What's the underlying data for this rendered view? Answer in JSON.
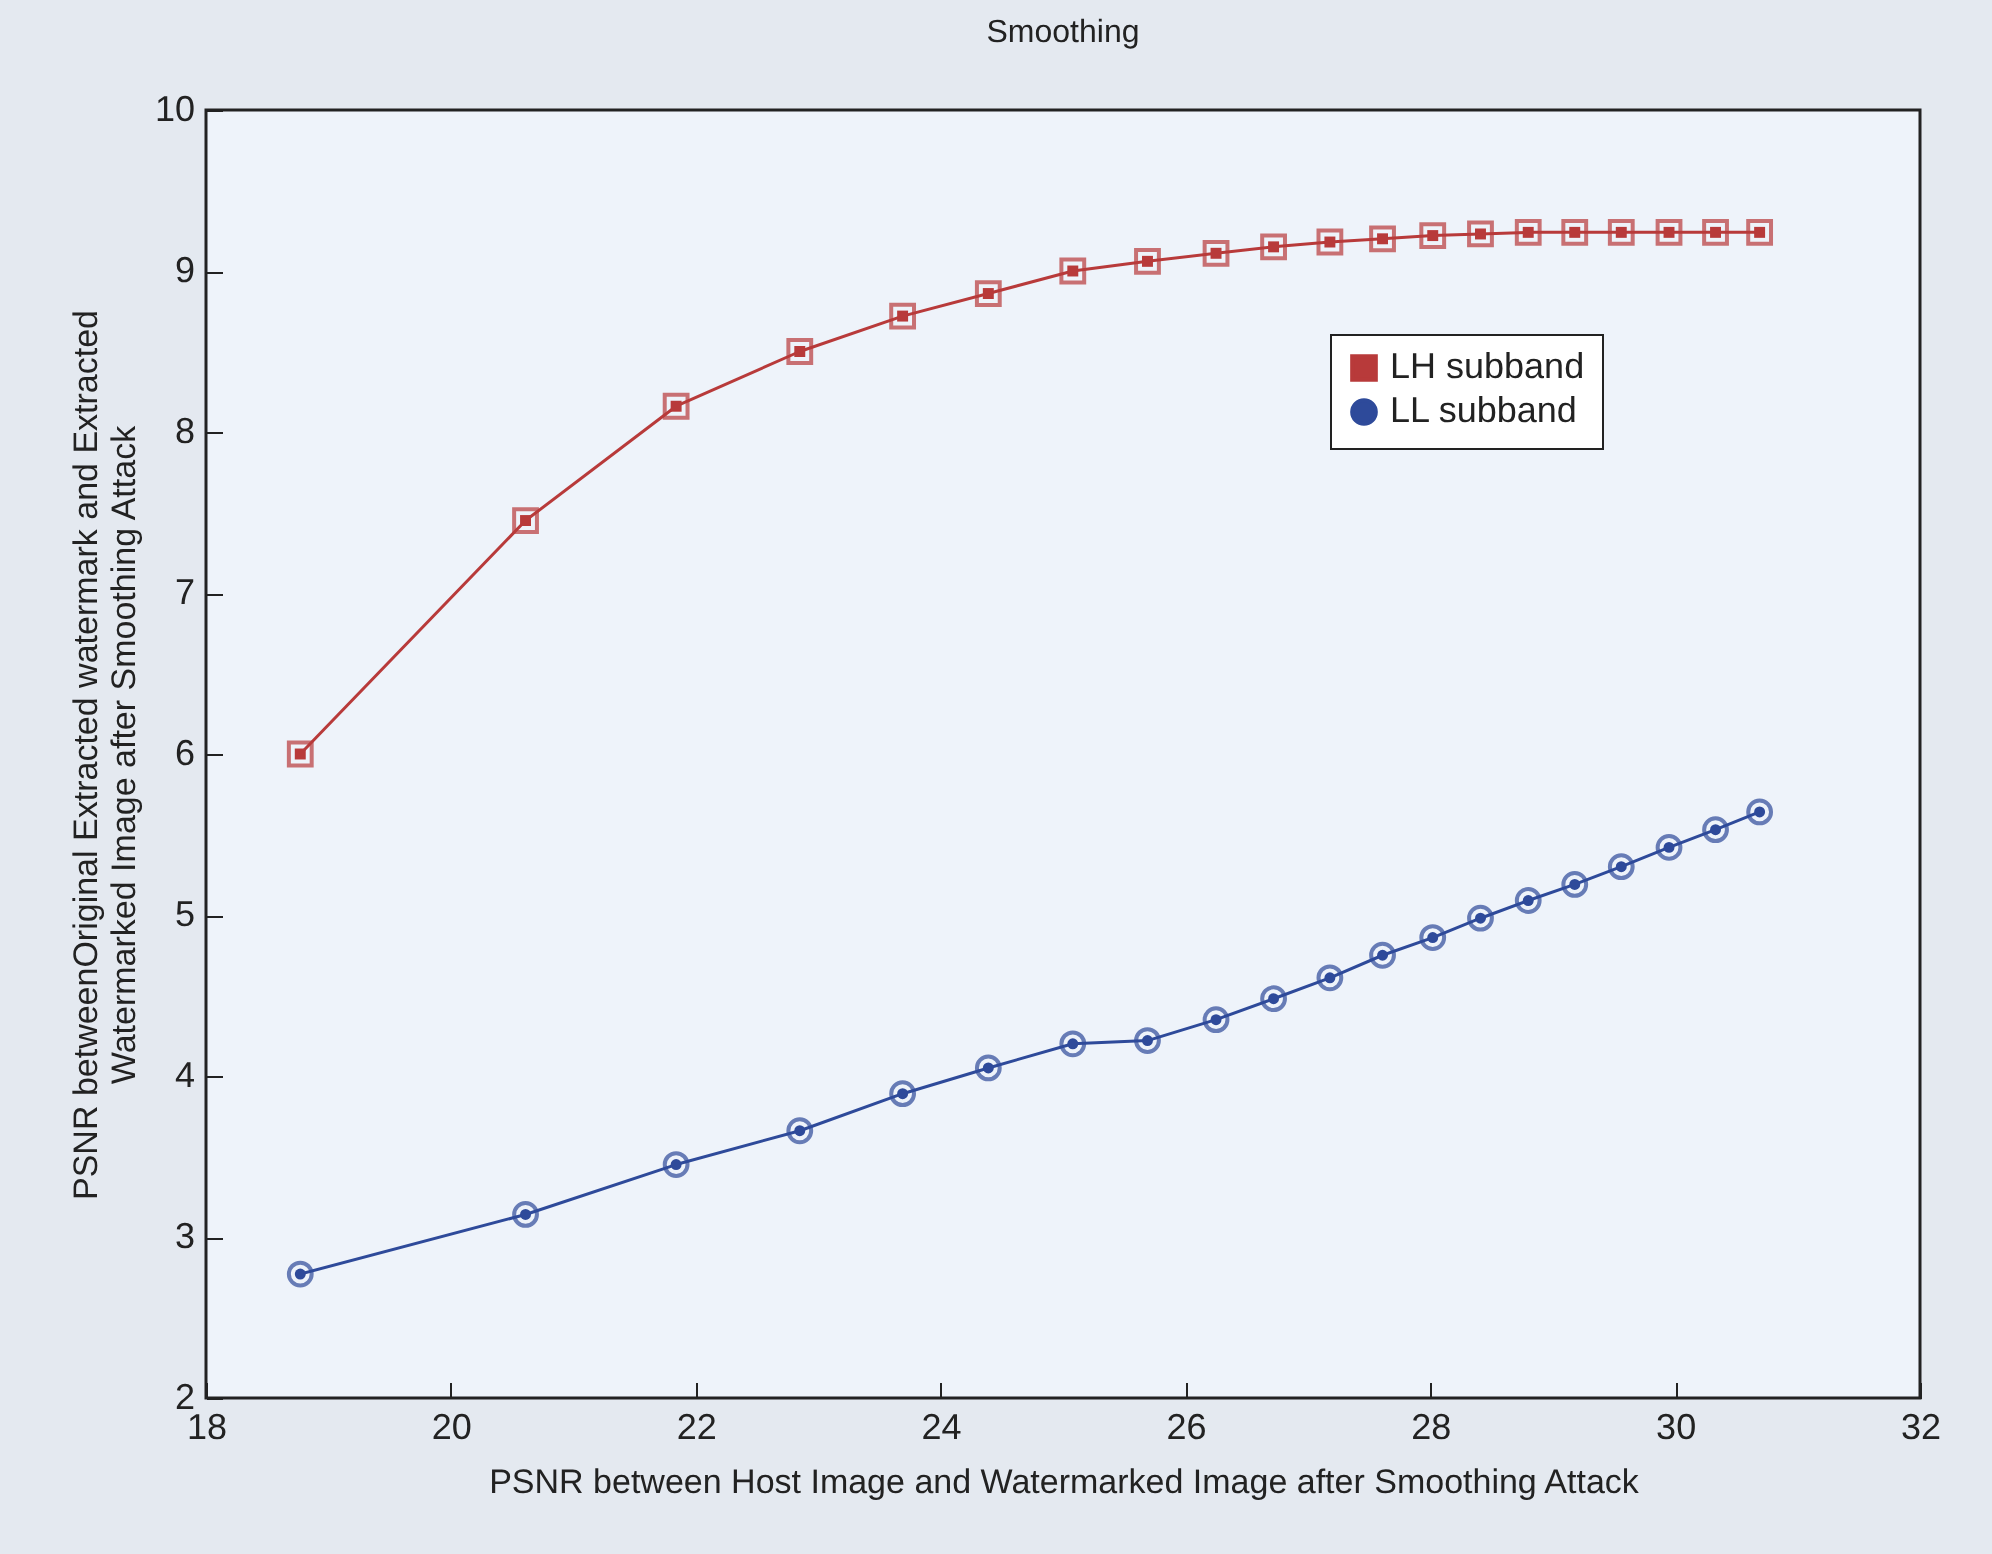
{
  "chart_data": {
    "type": "line",
    "title": "Smoothing",
    "xlabel": "PSNR between Host Image and Watermarked Image after Smoothing Attack",
    "ylabel": "PSNR betweenOriginal Extracted watermark and Extracted\nWatermarked Image after Smoothing Attack",
    "x": [
      18.77,
      20.61,
      21.84,
      22.85,
      23.69,
      24.39,
      25.08,
      25.69,
      26.25,
      26.72,
      27.18,
      27.61,
      28.02,
      28.41,
      28.8,
      29.18,
      29.56,
      29.95,
      30.33,
      30.69
    ],
    "series": [
      {
        "name": "LH subband",
        "color": "#b83a3a",
        "marker": "square",
        "values": [
          6.0,
          7.45,
          8.16,
          8.5,
          8.72,
          8.86,
          9.0,
          9.06,
          9.11,
          9.15,
          9.18,
          9.2,
          9.22,
          9.23,
          9.24,
          9.24,
          9.24,
          9.24,
          9.24,
          9.24
        ]
      },
      {
        "name": "LL subband",
        "color": "#2e4a9a",
        "marker": "circle",
        "values": [
          2.77,
          3.14,
          3.45,
          3.66,
          3.89,
          4.05,
          4.2,
          4.22,
          4.35,
          4.48,
          4.61,
          4.75,
          4.86,
          4.98,
          5.09,
          5.19,
          5.3,
          5.42,
          5.53,
          5.64
        ]
      }
    ],
    "xlim": [
      18,
      32
    ],
    "xticks": [
      18,
      20,
      22,
      24,
      26,
      28,
      30,
      32
    ],
    "ylim": [
      2,
      10
    ],
    "yticks": [
      2,
      3,
      4,
      5,
      6,
      7,
      8,
      9,
      10
    ],
    "grid": false,
    "legend": "top right",
    "line_style": "solid"
  }
}
